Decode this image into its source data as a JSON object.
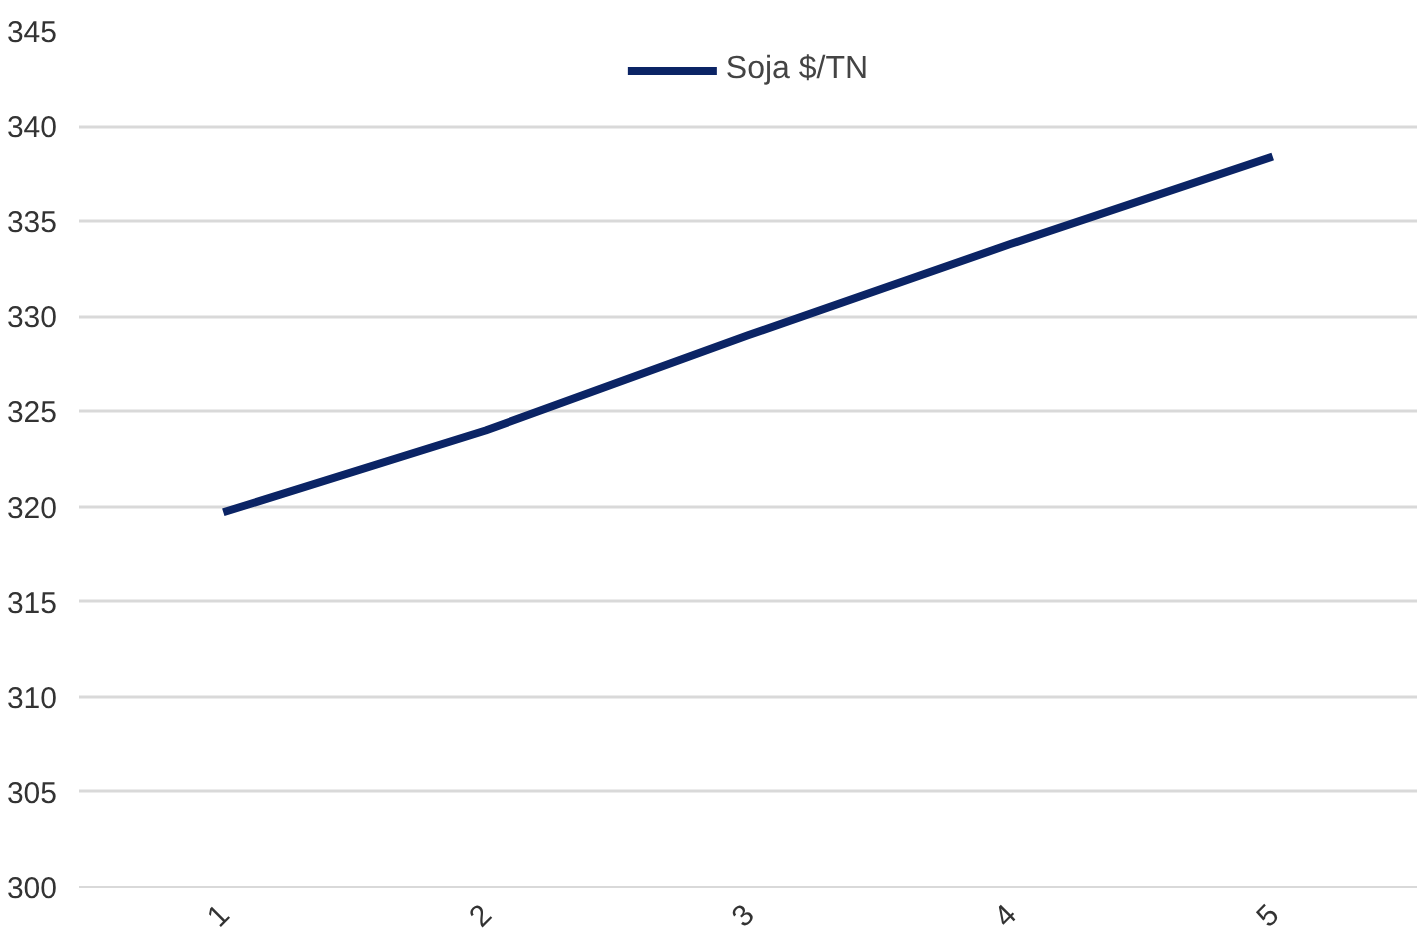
{
  "chart_data": {
    "type": "line",
    "categories": [
      "1",
      "2",
      "3",
      "4",
      "5"
    ],
    "series": [
      {
        "name": "Soja $/TN",
        "color": "#0b2465",
        "values": [
          319.7,
          324.0,
          329.0,
          333.8,
          338.4
        ]
      }
    ],
    "ylim": [
      300,
      345
    ],
    "yticks": [
      300,
      305,
      310,
      315,
      320,
      325,
      330,
      335,
      340,
      345
    ],
    "grid": "y",
    "legend": "top",
    "marker": "none",
    "line_style": "solid"
  }
}
